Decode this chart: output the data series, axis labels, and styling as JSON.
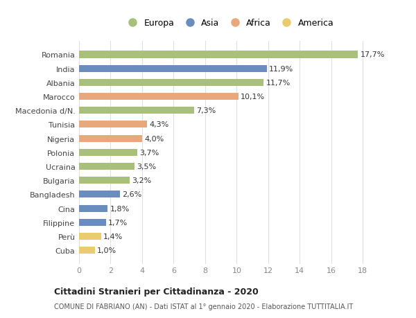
{
  "countries": [
    "Romania",
    "India",
    "Albania",
    "Marocco",
    "Macedonia d/N.",
    "Tunisia",
    "Nigeria",
    "Polonia",
    "Ucraina",
    "Bulgaria",
    "Bangladesh",
    "Cina",
    "Filippine",
    "Perù",
    "Cuba"
  ],
  "values": [
    17.7,
    11.9,
    11.7,
    10.1,
    7.3,
    4.3,
    4.0,
    3.7,
    3.5,
    3.2,
    2.6,
    1.8,
    1.7,
    1.4,
    1.0
  ],
  "labels": [
    "17,7%",
    "11,9%",
    "11,7%",
    "10,1%",
    "7,3%",
    "4,3%",
    "4,0%",
    "3,7%",
    "3,5%",
    "3,2%",
    "2,6%",
    "1,8%",
    "1,7%",
    "1,4%",
    "1,0%"
  ],
  "continents": [
    "Europa",
    "Asia",
    "Europa",
    "Africa",
    "Europa",
    "Africa",
    "Africa",
    "Europa",
    "Europa",
    "Europa",
    "Asia",
    "Asia",
    "Asia",
    "America",
    "America"
  ],
  "colors": {
    "Europa": "#a8c07a",
    "Asia": "#6b8cbf",
    "Africa": "#e8a87c",
    "America": "#e8cc6e"
  },
  "legend_order": [
    "Europa",
    "Asia",
    "Africa",
    "America"
  ],
  "title": "Cittadini Stranieri per Cittadinanza - 2020",
  "subtitle": "COMUNE DI FABRIANO (AN) - Dati ISTAT al 1° gennaio 2020 - Elaborazione TUTTITALIA.IT",
  "xlim": [
    0,
    19
  ],
  "xticks": [
    0,
    2,
    4,
    6,
    8,
    10,
    12,
    14,
    16,
    18
  ],
  "bg_color": "#ffffff",
  "grid_color": "#e0e0e0",
  "bar_height": 0.5
}
